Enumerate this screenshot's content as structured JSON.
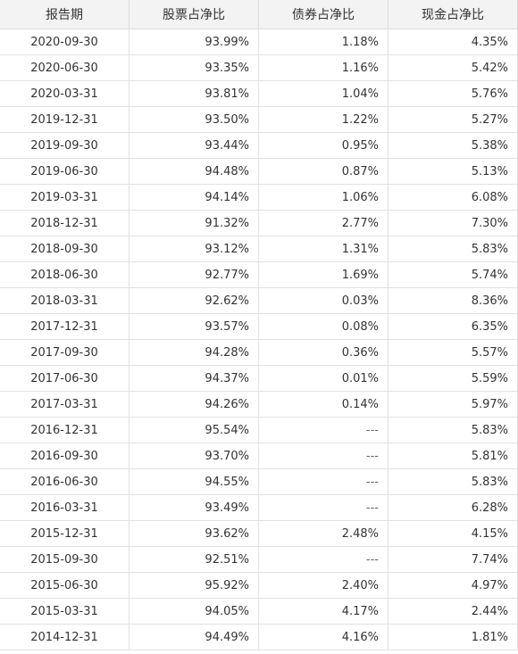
{
  "table": {
    "headers": [
      "报告期",
      "股票占净比",
      "债券占净比",
      "现金占净比"
    ],
    "rows": [
      [
        "2020-09-30",
        "93.99%",
        "1.18%",
        "4.35%"
      ],
      [
        "2020-06-30",
        "93.35%",
        "1.16%",
        "5.42%"
      ],
      [
        "2020-03-31",
        "93.81%",
        "1.04%",
        "5.76%"
      ],
      [
        "2019-12-31",
        "93.50%",
        "1.22%",
        "5.27%"
      ],
      [
        "2019-09-30",
        "93.44%",
        "0.95%",
        "5.38%"
      ],
      [
        "2019-06-30",
        "94.48%",
        "0.87%",
        "5.13%"
      ],
      [
        "2019-03-31",
        "94.14%",
        "1.06%",
        "6.08%"
      ],
      [
        "2018-12-31",
        "91.32%",
        "2.77%",
        "7.30%"
      ],
      [
        "2018-09-30",
        "93.12%",
        "1.31%",
        "5.83%"
      ],
      [
        "2018-06-30",
        "92.77%",
        "1.69%",
        "5.74%"
      ],
      [
        "2018-03-31",
        "92.62%",
        "0.03%",
        "8.36%"
      ],
      [
        "2017-12-31",
        "93.57%",
        "0.08%",
        "6.35%"
      ],
      [
        "2017-09-30",
        "94.28%",
        "0.36%",
        "5.57%"
      ],
      [
        "2017-06-30",
        "94.37%",
        "0.01%",
        "5.59%"
      ],
      [
        "2017-03-31",
        "94.26%",
        "0.14%",
        "5.97%"
      ],
      [
        "2016-12-31",
        "95.54%",
        "---",
        "5.83%"
      ],
      [
        "2016-09-30",
        "93.70%",
        "---",
        "5.81%"
      ],
      [
        "2016-06-30",
        "94.55%",
        "---",
        "5.83%"
      ],
      [
        "2016-03-31",
        "93.49%",
        "---",
        "6.28%"
      ],
      [
        "2015-12-31",
        "93.62%",
        "2.48%",
        "4.15%"
      ],
      [
        "2015-09-30",
        "92.51%",
        "---",
        "7.74%"
      ],
      [
        "2015-06-30",
        "95.92%",
        "2.40%",
        "4.97%"
      ],
      [
        "2015-03-31",
        "94.05%",
        "4.17%",
        "2.44%"
      ],
      [
        "2014-12-31",
        "94.49%",
        "4.16%",
        "1.81%"
      ]
    ]
  }
}
